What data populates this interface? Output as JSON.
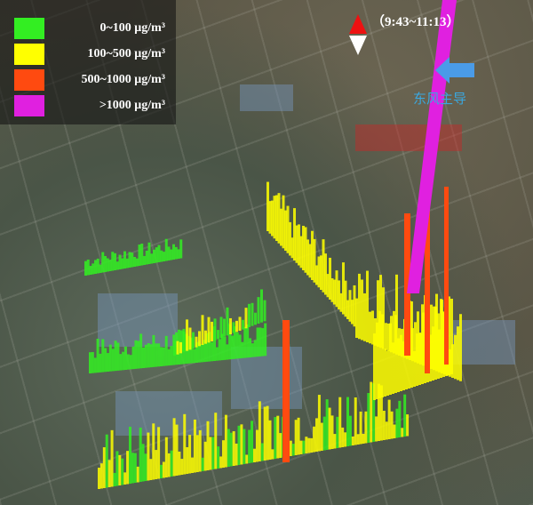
{
  "legend": {
    "items": [
      {
        "label": "0~100 μg/m³",
        "color": "#33ee22"
      },
      {
        "label": "100~500 μg/m³",
        "color": "#ffff00"
      },
      {
        "label": "500~1000 μg/m³",
        "color": "#ff4a10"
      },
      {
        "label": ">1000 μg/m³",
        "color": "#e020e0"
      }
    ]
  },
  "time_range": "（9:43~11:13）",
  "wind": {
    "label": "东风主导",
    "arrow_color": "#4a9be8"
  },
  "compass": {
    "north_color": "#ee1111",
    "south_color": "#ffffff"
  }
}
